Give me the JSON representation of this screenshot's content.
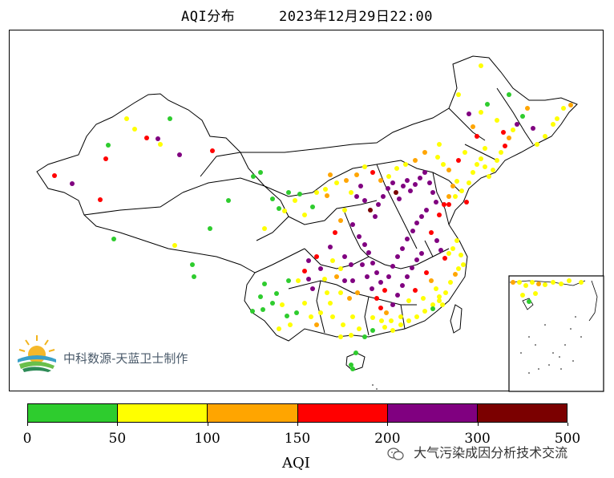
{
  "title": {
    "main": "AQI分布",
    "time": "2023年12月29日22:00"
  },
  "logo": {
    "text": "中科数源-天蓝卫士制作"
  },
  "legend": {
    "label": "AQI",
    "ticks": [
      "0",
      "50",
      "100",
      "150",
      "200",
      "300",
      "500"
    ],
    "bins": [
      {
        "range": "0-50",
        "color": "#2ECC2E"
      },
      {
        "range": "50-100",
        "color": "#FFFF00"
      },
      {
        "range": "100-150",
        "color": "#FFA500"
      },
      {
        "range": "150-200",
        "color": "#FF0000"
      },
      {
        "range": "200-300",
        "color": "#800080"
      },
      {
        "range": "300-500",
        "color": "#7B0000"
      }
    ]
  },
  "watermark": {
    "icon": "wechat-icon",
    "text": "大气污染成因分析技术交流"
  },
  "map": {
    "region": "China",
    "inset": "South China Sea"
  }
}
